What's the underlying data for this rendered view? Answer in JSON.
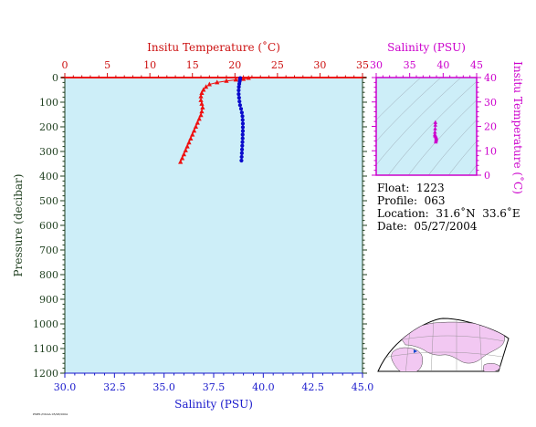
{
  "chart_data": [
    {
      "type": "scatter",
      "ylabel": "Pressure (decibar)",
      "ylim": [
        1200,
        0
      ],
      "yticks": [
        "0",
        "100",
        "200",
        "300",
        "400",
        "500",
        "600",
        "700",
        "800",
        "900",
        "1000",
        "1100",
        "1200"
      ],
      "top_axis": {
        "label": "Insitu Temperature (˚C)",
        "range": [
          0,
          35
        ],
        "ticks": [
          "0",
          "5",
          "10",
          "15",
          "20",
          "25",
          "30",
          "35"
        ],
        "color": "#cc1111"
      },
      "bottom_axis": {
        "label": "Salinity (PSU)",
        "range": [
          30.0,
          45.0
        ],
        "ticks": [
          "30.0",
          "32.5",
          "35.0",
          "37.5",
          "40.0",
          "42.5",
          "45.0"
        ],
        "color": "#1a1acc"
      },
      "series": [
        {
          "axis": "top",
          "marker": "triangle",
          "color": "#ee1111",
          "points": [
            [
              21.6,
              2
            ],
            [
              21.0,
              6
            ],
            [
              20.1,
              9
            ],
            [
              19.0,
              14
            ],
            [
              17.9,
              20
            ],
            [
              17.0,
              28
            ],
            [
              16.6,
              38
            ],
            [
              16.3,
              50
            ],
            [
              16.1,
              63
            ],
            [
              16.0,
              77
            ],
            [
              16.0,
              92
            ],
            [
              16.1,
              107
            ],
            [
              16.2,
              122
            ],
            [
              16.1,
              138
            ],
            [
              16.0,
              153
            ],
            [
              15.8,
              168
            ],
            [
              15.6,
              184
            ],
            [
              15.4,
              200
            ],
            [
              15.2,
              216
            ],
            [
              15.0,
              232
            ],
            [
              14.8,
              248
            ],
            [
              14.6,
              264
            ],
            [
              14.4,
              280
            ],
            [
              14.2,
              296
            ],
            [
              14.0,
              312
            ],
            [
              13.8,
              328
            ],
            [
              13.6,
              343
            ]
          ]
        },
        {
          "axis": "bottom",
          "marker": "circle",
          "color": "#0a0acc",
          "points": [
            [
              38.84,
              2
            ],
            [
              38.83,
              8
            ],
            [
              38.81,
              16
            ],
            [
              38.79,
              26
            ],
            [
              38.77,
              38
            ],
            [
              38.76,
              52
            ],
            [
              38.76,
              67
            ],
            [
              38.78,
              82
            ],
            [
              38.8,
              97
            ],
            [
              38.83,
              112
            ],
            [
              38.88,
              127
            ],
            [
              38.92,
              142
            ],
            [
              38.95,
              157
            ],
            [
              38.96,
              172
            ],
            [
              38.97,
              187
            ],
            [
              38.97,
              202
            ],
            [
              38.97,
              217
            ],
            [
              38.96,
              232
            ],
            [
              38.96,
              247
            ],
            [
              38.95,
              262
            ],
            [
              38.94,
              277
            ],
            [
              38.93,
              292
            ],
            [
              38.92,
              307
            ],
            [
              38.91,
              322
            ],
            [
              38.9,
              337
            ]
          ]
        }
      ]
    },
    {
      "type": "scatter",
      "xlabel": "Salinity (PSU)",
      "ylabel": "Insitu Temperature (˚C)",
      "xlim": [
        30,
        45
      ],
      "ylim": [
        0,
        40
      ],
      "xticks": [
        "30",
        "35",
        "40",
        "45"
      ],
      "yticks": [
        "0",
        "10",
        "20",
        "30",
        "40"
      ],
      "color": "#cc00cc",
      "points": [
        [
          38.84,
          21.6
        ],
        [
          38.83,
          20.5
        ],
        [
          38.8,
          19.0
        ],
        [
          38.77,
          17.6
        ],
        [
          38.76,
          16.6
        ],
        [
          38.78,
          16.1
        ],
        [
          38.83,
          16.1
        ],
        [
          38.9,
          15.8
        ],
        [
          38.95,
          15.4
        ],
        [
          38.97,
          15.0
        ],
        [
          38.96,
          14.6
        ],
        [
          38.94,
          14.2
        ],
        [
          38.9,
          13.6
        ]
      ]
    }
  ],
  "info": {
    "float": "Float:  1223",
    "profile": "Profile:  063",
    "location": "Location:  31.6˚N  33.6˚E",
    "date": "Date:  05/27/2004"
  },
  "footer": "PMEL/NOAA 05/28/2004"
}
